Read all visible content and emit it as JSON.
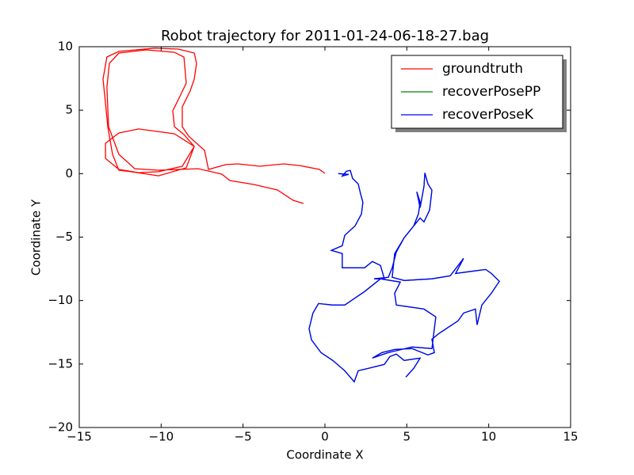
{
  "chart_data": {
    "type": "line",
    "title": "Robot trajectory for 2011-01-24-06-18-27.bag",
    "xlabel": "Coordinate X",
    "ylabel": "Coordinate Y",
    "xlim": [
      -15,
      15
    ],
    "ylim": [
      -20,
      10
    ],
    "xticks": [
      {
        "value": -15,
        "label": "−15"
      },
      {
        "value": -10,
        "label": "−10"
      },
      {
        "value": -5,
        "label": "−5"
      },
      0,
      5,
      10,
      15
    ],
    "yticks": [
      {
        "value": -20,
        "label": "−20"
      },
      {
        "value": -15,
        "label": "−15"
      },
      {
        "value": -10,
        "label": "−10"
      },
      {
        "value": -5,
        "label": "−5"
      },
      0,
      5,
      10
    ],
    "legend": "upper right",
    "series": [
      {
        "name": "groundtruth",
        "color": "#ff0000",
        "x": [
          0.0,
          -0.34,
          -1.55,
          -2.52,
          -3.97,
          -5.32,
          -6.05,
          -7.11,
          -7.35,
          -8.32,
          -8.71,
          -8.71,
          -8.23,
          -7.98,
          -7.84,
          -7.98,
          -8.95,
          -10.4,
          -12.58,
          -13.31,
          -13.55,
          -13.4,
          -13.26,
          -12.97,
          -12.58,
          -11.85,
          -10.16,
          -8.47,
          -7.98,
          -9.19,
          -11.37,
          -12.58,
          -13.4,
          -13.4,
          -12.58,
          -11.37,
          -10.16,
          -8.71,
          -7.98,
          -8.61,
          -9.19,
          -9.29,
          -8.81,
          -8.47,
          -8.61,
          -9.19,
          -10.89,
          -12.58,
          -13.16,
          -13.31,
          -13.21,
          -12.58,
          -11.61,
          -10.16,
          -7.74,
          -6.29,
          -5.81,
          -4.35,
          -2.9,
          -1.94,
          -1.31
        ],
        "values": [
          0.02,
          0.33,
          0.64,
          0.77,
          0.58,
          0.77,
          0.71,
          0.33,
          1.83,
          2.95,
          3.7,
          5.26,
          6.51,
          7.44,
          8.69,
          9.5,
          9.81,
          9.88,
          9.63,
          9.19,
          7.44,
          5.57,
          3.7,
          1.52,
          0.27,
          0.15,
          -0.17,
          0.46,
          2.14,
          3.14,
          3.52,
          3.2,
          2.39,
          1.2,
          0.33,
          0.08,
          0.15,
          0.58,
          2.14,
          3.08,
          3.7,
          4.95,
          6.2,
          7.13,
          9.19,
          9.56,
          9.75,
          9.5,
          8.69,
          6.82,
          3.7,
          1.52,
          0.39,
          0.27,
          0.39,
          -0.04,
          -0.54,
          -0.85,
          -1.29,
          -2.1,
          -2.35
        ]
      },
      {
        "name": "recoverPosePP",
        "color": "#008000",
        "x": [
          0.82,
          1.45,
          1.06,
          1.31,
          1.55,
          1.69,
          2.03,
          2.18,
          2.32,
          2.23,
          1.84,
          1.21,
          1.06,
          0.39,
          1.06,
          1.06,
          2.42,
          2.9,
          3.39,
          3.63,
          3.0,
          3.87,
          4.11,
          4.36,
          4.84,
          5.42,
          5.71,
          5.81,
          5.61,
          5.81,
          6.05,
          6.1,
          6.29,
          6.53,
          6.39,
          6.05,
          5.81,
          4.84,
          4.26,
          4.11,
          4.84,
          6.53,
          7.65,
          8.47,
          7.98,
          9.1,
          9.82,
          10.16,
          10.65,
          10.16,
          9.58,
          9.29,
          9.19,
          8.47,
          8.13,
          7.02,
          6.53,
          6.68,
          6.29,
          5.32,
          4.26,
          3.48,
          2.9,
          3.87,
          5.32,
          6.53,
          6.77,
          6.05,
          4.36,
          4.26,
          4.6,
          3.39,
          2.42,
          1.21,
          0.48,
          -0.39,
          -0.73,
          -0.97,
          -0.82,
          -0.24,
          0.48,
          1.21,
          1.79,
          2.03,
          2.66,
          3.63,
          3.97,
          4.36,
          4.84,
          5.81,
          5.42,
          4.94
        ],
        "values": [
          0,
          -0.06,
          -0.19,
          0.19,
          0.25,
          -0.37,
          -0.81,
          -1.62,
          -2.25,
          -3.18,
          -4.12,
          -4.86,
          -5.68,
          -6.05,
          -6.3,
          -7.42,
          -7.42,
          -6.92,
          -7.23,
          -8.29,
          -8.29,
          -8.17,
          -7.42,
          -6.17,
          -5.05,
          -4.12,
          -3.18,
          -2.25,
          -1.43,
          -2.68,
          -1.0,
          0.06,
          -0.81,
          -1.31,
          -2.87,
          -3.8,
          -3.49,
          -5.05,
          -6.3,
          -8.17,
          -8.42,
          -8.29,
          -8.05,
          -6.67,
          -7.86,
          -7.67,
          -7.55,
          -7.86,
          -8.48,
          -9.42,
          -10.35,
          -11.91,
          -10.67,
          -10.98,
          -11.6,
          -12.54,
          -13.04,
          -14.1,
          -14.28,
          -13.78,
          -13.85,
          -14.1,
          -14.53,
          -14.1,
          -13.66,
          -13.78,
          -11.29,
          -10.67,
          -10.35,
          -9.42,
          -8.54,
          -8.29,
          -9.29,
          -10.35,
          -10.35,
          -10.23,
          -10.98,
          -12.22,
          -13.1,
          -14.1,
          -14.72,
          -15.53,
          -16.4,
          -15.53,
          -15.34,
          -15.03,
          -14.41,
          -14.22,
          -14.72,
          -14.53,
          -15.34,
          -16.03
        ]
      },
      {
        "name": "recoverPoseK",
        "color": "#0000ff",
        "x": [
          0.82,
          1.45,
          1.06,
          1.31,
          1.55,
          1.69,
          2.03,
          2.18,
          2.32,
          2.23,
          1.84,
          1.21,
          1.06,
          0.39,
          1.06,
          1.06,
          2.42,
          2.9,
          3.39,
          3.63,
          3.0,
          3.87,
          4.11,
          4.36,
          4.84,
          5.42,
          5.71,
          5.81,
          5.61,
          5.81,
          6.05,
          6.1,
          6.29,
          6.53,
          6.39,
          6.05,
          5.81,
          4.84,
          4.26,
          4.11,
          4.84,
          6.53,
          7.65,
          8.47,
          7.98,
          9.1,
          9.82,
          10.16,
          10.65,
          10.16,
          9.58,
          9.29,
          9.19,
          8.47,
          8.13,
          7.02,
          6.53,
          6.68,
          6.29,
          5.32,
          4.26,
          3.48,
          2.9,
          3.87,
          5.32,
          6.53,
          6.77,
          6.05,
          4.36,
          4.26,
          4.6,
          3.39,
          2.42,
          1.21,
          0.48,
          -0.39,
          -0.73,
          -0.97,
          -0.82,
          -0.24,
          0.48,
          1.21,
          1.79,
          2.03,
          2.66,
          3.63,
          3.97,
          4.36,
          4.84,
          5.81,
          5.42,
          4.94
        ],
        "values": [
          0,
          -0.06,
          -0.19,
          0.19,
          0.25,
          -0.37,
          -0.81,
          -1.62,
          -2.25,
          -3.18,
          -4.12,
          -4.86,
          -5.68,
          -6.05,
          -6.3,
          -7.42,
          -7.42,
          -6.92,
          -7.23,
          -8.29,
          -8.29,
          -8.17,
          -7.42,
          -6.17,
          -5.05,
          -4.12,
          -3.18,
          -2.25,
          -1.43,
          -2.68,
          -1.0,
          0.06,
          -0.81,
          -1.31,
          -2.87,
          -3.8,
          -3.49,
          -5.05,
          -6.3,
          -8.17,
          -8.42,
          -8.29,
          -8.05,
          -6.67,
          -7.86,
          -7.67,
          -7.55,
          -7.86,
          -8.48,
          -9.42,
          -10.35,
          -11.91,
          -10.67,
          -10.98,
          -11.6,
          -12.54,
          -13.04,
          -14.1,
          -14.28,
          -13.78,
          -13.85,
          -14.1,
          -14.53,
          -14.1,
          -13.66,
          -13.78,
          -11.29,
          -10.67,
          -10.35,
          -9.42,
          -8.54,
          -8.29,
          -9.29,
          -10.35,
          -10.35,
          -10.23,
          -10.98,
          -12.22,
          -13.1,
          -14.1,
          -14.72,
          -15.53,
          -16.4,
          -15.53,
          -15.34,
          -15.03,
          -14.41,
          -14.22,
          -14.72,
          -14.53,
          -15.34,
          -16.03
        ]
      }
    ]
  }
}
